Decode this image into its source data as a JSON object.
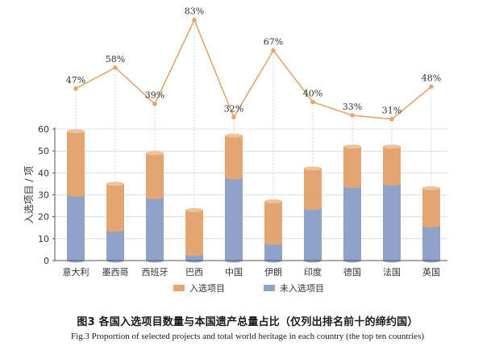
{
  "figure": {
    "caption_cn": "图3 各国入选项目数量与本国遗产总量占比（仅列出排名前十的缔约国）",
    "caption_en": "Fig.3 Proportion of selected projects and total world heritage in each country (the top ten countries)"
  },
  "chart_data": {
    "type": "bar",
    "stacked": true,
    "categories": [
      "意大利",
      "墨西哥",
      "西班牙",
      "巴西",
      "中国",
      "伊朗",
      "印度",
      "德国",
      "法国",
      "英国"
    ],
    "series": [
      {
        "name": "未入选项目",
        "color": "#8fa3c9",
        "values": [
          30,
          14,
          29,
          3,
          38,
          8,
          24,
          34,
          35,
          16
        ]
      },
      {
        "name": "入选项目",
        "color": "#e3a673",
        "values": [
          29,
          21,
          20,
          20,
          19,
          19,
          18,
          18,
          17,
          17
        ]
      }
    ],
    "proportion_line": {
      "color": "#e3a673",
      "values": [
        47,
        58,
        39,
        83,
        32,
        67,
        40,
        33,
        31,
        48
      ],
      "labels": [
        "47%",
        "58%",
        "39%",
        "83%",
        "32%",
        "67%",
        "40%",
        "33%",
        "31%",
        "48%"
      ]
    },
    "ylabel": "入选项目 / 项",
    "ylim": [
      0,
      60
    ],
    "yticks": [
      0,
      10,
      20,
      30,
      40,
      50,
      60
    ],
    "legend_position": "bottom"
  }
}
